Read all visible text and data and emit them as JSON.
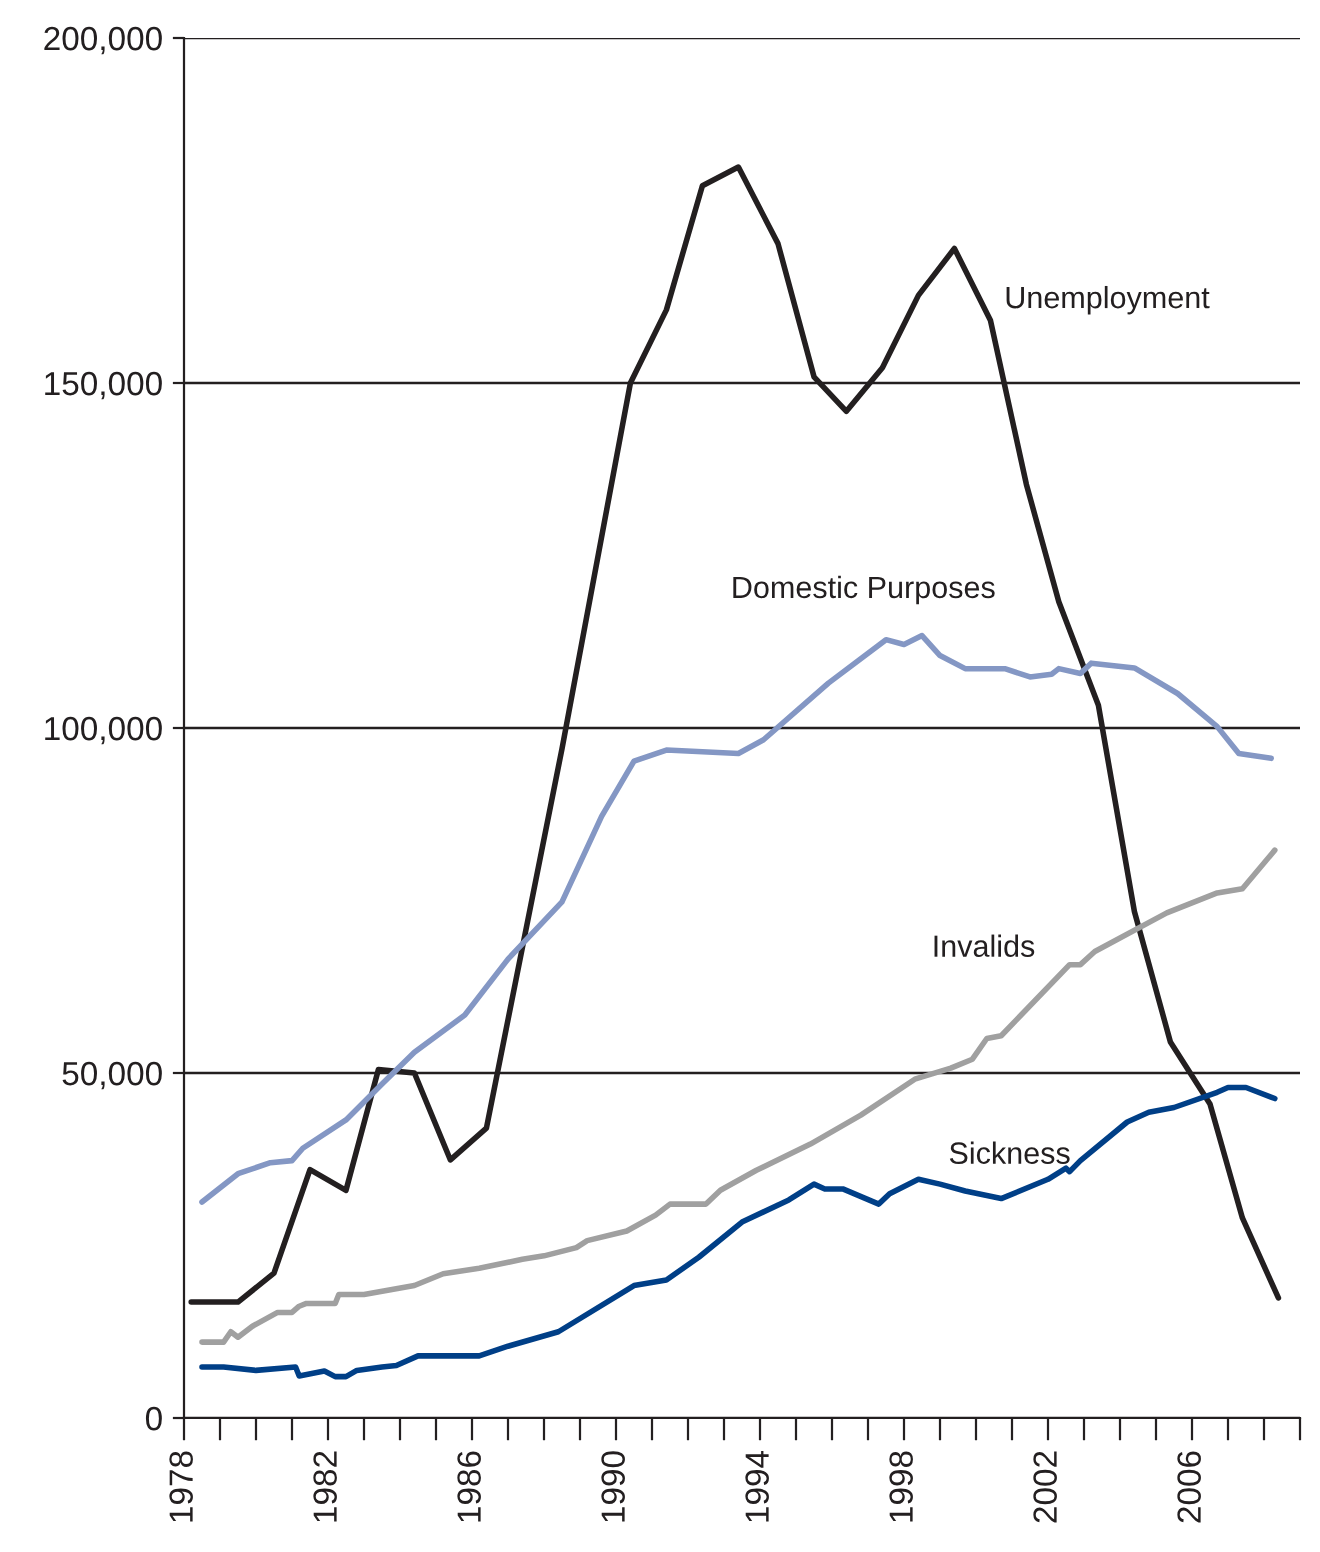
{
  "chart_data": {
    "type": "line",
    "grid": "y",
    "legend": false,
    "marker": "none",
    "line_style": "solid",
    "xlim": [
      1978,
      2009
    ],
    "xticks": [
      1978,
      {
        "value": 1979,
        "label": null
      },
      {
        "value": 1980,
        "label": null
      },
      {
        "value": 1981,
        "label": null
      },
      1982,
      {
        "value": 1983,
        "label": null
      },
      {
        "value": 1984,
        "label": null
      },
      {
        "value": 1985,
        "label": null
      },
      1986,
      {
        "value": 1987,
        "label": null
      },
      {
        "value": 1988,
        "label": null
      },
      {
        "value": 1989,
        "label": null
      },
      1990,
      {
        "value": 1991,
        "label": null
      },
      {
        "value": 1992,
        "label": null
      },
      {
        "value": 1993,
        "label": null
      },
      1994,
      {
        "value": 1995,
        "label": null
      },
      {
        "value": 1996,
        "label": null
      },
      {
        "value": 1997,
        "label": null
      },
      1998,
      {
        "value": 1999,
        "label": null
      },
      {
        "value": 2000,
        "label": null
      },
      {
        "value": 2001,
        "label": null
      },
      2002,
      {
        "value": 2003,
        "label": null
      },
      {
        "value": 2004,
        "label": null
      },
      {
        "value": 2005,
        "label": null
      },
      2006,
      {
        "value": 2007,
        "label": null
      },
      {
        "value": 2008,
        "label": null
      },
      {
        "value": 2009,
        "label": null
      }
    ],
    "ylim": [
      0,
      200000
    ],
    "yticks": [
      0,
      {
        "value": 50000,
        "label": "50,000"
      },
      {
        "value": 100000,
        "label": "100,000"
      },
      {
        "value": 150000,
        "label": "150,000"
      },
      {
        "value": 200000,
        "label": "200,000"
      }
    ],
    "series": [
      {
        "name": "Unemployment",
        "color": "#231f20",
        "x": [
          1978.2,
          1979.5,
          1980.5,
          1981.5,
          1982.5,
          1983.4,
          1984.4,
          1985.4,
          1986.4,
          1988.5,
          1990.4,
          1991.4,
          1992.4,
          1993.4,
          1994.5,
          1995.5,
          1996.4,
          1997.4,
          1998.4,
          1999.4,
          2000.4,
          2001.4,
          2002.3,
          2003.4,
          2004.4,
          2005.4,
          2006.5,
          2007.4,
          2008.4
        ],
        "values": [
          16800,
          16800,
          21000,
          36000,
          33000,
          50500,
          50000,
          37400,
          42000,
          97000,
          150000,
          160600,
          178600,
          181300,
          170200,
          150900,
          145900,
          152200,
          162700,
          169500,
          159100,
          135300,
          118300,
          103300,
          73400,
          54500,
          45500,
          29000,
          17400
        ]
      },
      {
        "name": "Domestic Purposes",
        "color": "#8497c4",
        "x": [
          1978.5,
          1979.5,
          1980.4,
          1981.0,
          1981.3,
          1982.5,
          1983.5,
          1984.4,
          1985.8,
          1987.0,
          1988.5,
          1989.6,
          1990.5,
          1991.4,
          1993.4,
          1994.1,
          1995.9,
          1997.5,
          1998.0,
          1998.5,
          1999.0,
          1999.7,
          2000.8,
          2001.5,
          2002.1,
          2002.3,
          2002.9,
          2003.2,
          2004.4,
          2005.6,
          2006.7,
          2007.3,
          2008.2
        ],
        "values": [
          31300,
          35400,
          37000,
          37300,
          39100,
          43200,
          48400,
          53000,
          58400,
          66500,
          74800,
          87200,
          95200,
          96800,
          96300,
          98300,
          106500,
          112800,
          112100,
          113400,
          110500,
          108600,
          108600,
          107400,
          107800,
          108600,
          107900,
          109400,
          108700,
          105000,
          100200,
          96300,
          95600
        ]
      },
      {
        "name": "Invalids",
        "color": "#a0a0a0",
        "x": [
          1978.5,
          1979.1,
          1979.3,
          1979.5,
          1979.9,
          1980.6,
          1981.0,
          1981.2,
          1981.4,
          1982.2,
          1982.3,
          1983.0,
          1984.4,
          1985.2,
          1986.2,
          1987.4,
          1988.0,
          1988.9,
          1989.2,
          1990.3,
          1991.1,
          1991.5,
          1992.5,
          1992.9,
          1993.9,
          1995.4,
          1996.8,
          1998.3,
          1999.3,
          1999.9,
          2000.3,
          2000.7,
          2002.6,
          2002.9,
          2003.3,
          2005.3,
          2006.7,
          2007.4,
          2008.3
        ],
        "values": [
          11000,
          11000,
          12500,
          11700,
          13300,
          15300,
          15300,
          16200,
          16600,
          16600,
          17900,
          17900,
          19200,
          20900,
          21700,
          23000,
          23500,
          24700,
          25700,
          27100,
          29400,
          31000,
          31000,
          33000,
          35900,
          39700,
          43900,
          49100,
          50700,
          52000,
          55000,
          55400,
          65700,
          65700,
          67600,
          73200,
          76100,
          76700,
          82300
        ]
      },
      {
        "name": "Sickness",
        "color": "#003f87",
        "x": [
          1978.5,
          1979.1,
          1980.0,
          1981.1,
          1981.2,
          1981.9,
          1982.2,
          1982.5,
          1982.8,
          1983.5,
          1983.9,
          1984.5,
          1986.2,
          1987.0,
          1988.4,
          1990.5,
          1991.4,
          1992.3,
          1993.5,
          1994.8,
          1995.5,
          1995.8,
          1996.3,
          1997.3,
          1997.6,
          1998.4,
          1999.0,
          1999.7,
          2000.7,
          2002.0,
          2002.5,
          2002.6,
          2002.9,
          2004.2,
          2004.8,
          2005.5,
          2006.7,
          2007.0,
          2007.5,
          2008.3
        ],
        "values": [
          7400,
          7400,
          6900,
          7400,
          6100,
          6800,
          6000,
          6000,
          6900,
          7400,
          7600,
          9000,
          9000,
          10400,
          12500,
          19200,
          20000,
          23300,
          28400,
          31600,
          33900,
          33200,
          33200,
          31000,
          32500,
          34600,
          33900,
          32900,
          31800,
          34600,
          36200,
          35700,
          37300,
          42900,
          44300,
          45000,
          47200,
          47900,
          47900,
          46300
        ]
      }
    ]
  }
}
